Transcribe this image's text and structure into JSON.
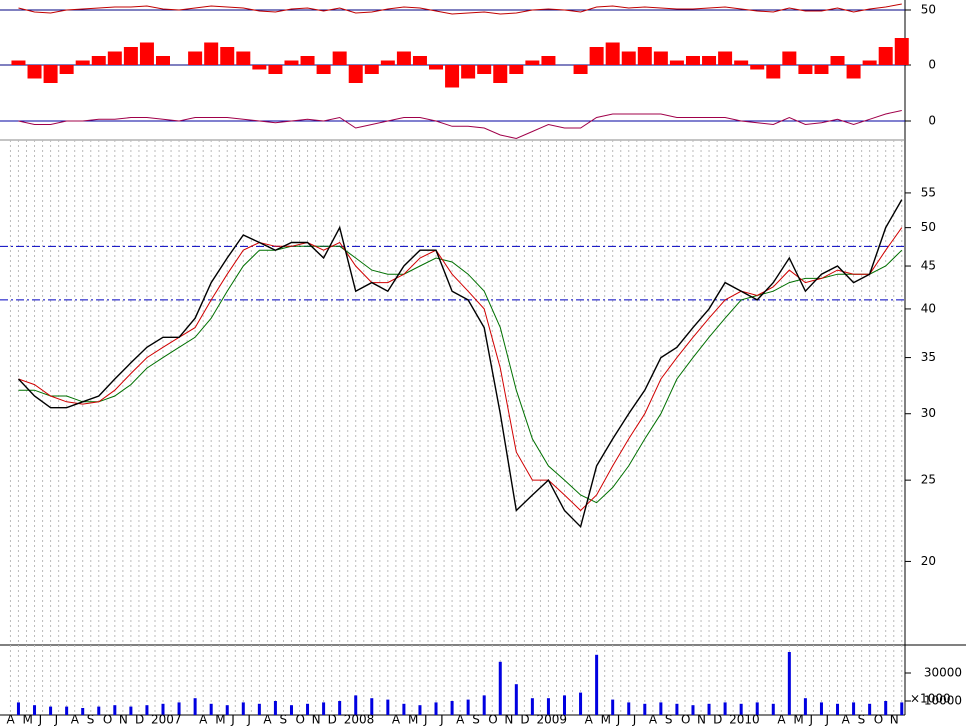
{
  "chart_data": [
    {
      "type": "line",
      "color": "#c00000",
      "values": [
        52,
        48,
        47,
        50,
        51,
        52,
        53,
        53,
        54,
        51,
        50,
        52,
        54,
        53,
        52,
        49,
        48,
        51,
        52,
        49,
        52,
        47,
        48,
        51,
        53,
        52,
        49,
        46,
        47,
        48,
        46,
        47,
        50,
        51,
        50,
        48,
        53,
        54,
        52,
        53,
        52,
        51,
        51,
        52,
        53,
        51,
        49,
        48,
        52,
        49,
        49,
        52,
        48,
        51,
        53,
        56
      ],
      "ylim": [
        40,
        60
      ],
      "yticks": [
        50
      ]
    },
    {
      "type": "bar",
      "color": "#ff0000",
      "values": [
        5,
        -15,
        -20,
        -10,
        5,
        10,
        15,
        20,
        25,
        10,
        0,
        15,
        25,
        20,
        15,
        -5,
        -10,
        5,
        10,
        -10,
        15,
        -20,
        -10,
        5,
        15,
        10,
        -5,
        -25,
        -15,
        -10,
        -20,
        -10,
        5,
        10,
        0,
        -10,
        20,
        25,
        15,
        20,
        15,
        5,
        10,
        10,
        15,
        5,
        -5,
        -15,
        15,
        -10,
        -10,
        10,
        -15,
        5,
        20,
        30
      ],
      "ylim": [
        -50,
        50
      ],
      "yticks": [
        0
      ]
    },
    {
      "type": "line",
      "color": "#a0004a",
      "values": [
        0,
        -1,
        -1,
        0,
        0,
        0.5,
        0.5,
        1,
        1,
        0.5,
        0,
        1,
        1,
        1,
        0.5,
        0,
        -0.5,
        0,
        0.5,
        0,
        1,
        -2,
        -1,
        0,
        1,
        1,
        0,
        -1.5,
        -1.5,
        -2,
        -4,
        -5,
        -3,
        -1,
        -2,
        -2,
        1,
        2,
        2,
        2,
        2,
        1,
        1,
        1,
        1,
        0,
        -0.5,
        -1,
        1,
        -1,
        -0.5,
        0.5,
        -1,
        0.5,
        2,
        3
      ],
      "ylim": [
        -6,
        6
      ],
      "yticks": [
        0
      ]
    },
    {
      "type": "line",
      "log_scale": true,
      "ylim": [
        15.9,
        63.6
      ],
      "yticks": [
        20,
        25,
        30,
        35,
        40,
        45,
        50,
        55
      ],
      "reference_lines": [
        47.5,
        41
      ],
      "reference_color": "#0000c0",
      "series": [
        {
          "color": "#000000",
          "values": [
            33,
            31.5,
            30.5,
            30.5,
            31,
            31.5,
            33,
            34.5,
            36,
            37,
            37,
            39,
            43,
            46,
            49,
            48,
            47,
            48,
            48,
            46,
            50,
            42,
            43,
            42,
            45,
            47,
            47,
            42,
            41,
            38,
            30,
            23,
            24,
            25,
            23,
            22,
            26,
            28,
            30,
            32,
            35,
            36,
            38,
            40,
            43,
            42,
            41,
            43,
            46,
            42,
            44,
            45,
            43,
            44,
            50,
            54
          ]
        },
        {
          "color": "#d00000",
          "values": [
            33,
            32.5,
            31.5,
            31,
            30.8,
            31,
            32,
            33.5,
            35,
            36,
            37,
            38,
            41,
            44,
            47,
            48,
            47.5,
            47.5,
            48,
            47,
            48,
            45,
            43,
            43,
            44,
            46,
            47,
            44,
            42,
            40,
            34,
            27,
            25,
            25,
            24,
            23,
            24,
            26,
            28,
            30,
            33,
            35,
            37,
            39,
            41,
            42,
            41.5,
            42.5,
            44.5,
            43,
            43.5,
            44.5,
            44,
            44,
            47,
            50
          ]
        },
        {
          "color": "#007000",
          "values": [
            32,
            32,
            31.5,
            31.5,
            31,
            31,
            31.5,
            32.5,
            34,
            35,
            36,
            37,
            39,
            42,
            45,
            47,
            47,
            47.5,
            47.5,
            47.5,
            47.5,
            46,
            44.5,
            44,
            44,
            45,
            46,
            45.5,
            44,
            42,
            38,
            32,
            28,
            26,
            25,
            24,
            23.5,
            24.5,
            26,
            28,
            30,
            33,
            35,
            37,
            39,
            41,
            41.5,
            42,
            43,
            43.5,
            43.5,
            44,
            44,
            44,
            45,
            47
          ]
        }
      ]
    },
    {
      "type": "bar",
      "color": "#0000e0",
      "categories": [
        "A",
        "M",
        "J",
        "J",
        "A",
        "S",
        "O",
        "N",
        "D",
        "2007",
        null,
        null,
        "A",
        "M",
        "J",
        "J",
        "A",
        "S",
        "O",
        "N",
        "D",
        "2008",
        null,
        null,
        "A",
        "M",
        "J",
        "J",
        "A",
        "S",
        "O",
        "N",
        "D",
        "2009",
        null,
        null,
        "A",
        "M",
        "J",
        "J",
        "A",
        "S",
        "O",
        "N",
        "D",
        "2010",
        null,
        null,
        "A",
        "M",
        "J",
        "J",
        "A",
        "S",
        "O",
        "N"
      ],
      "values": [
        9000,
        7000,
        6000,
        6000,
        5000,
        6000,
        7000,
        6000,
        7000,
        8000,
        9000,
        12000,
        8000,
        7000,
        9000,
        8000,
        10000,
        7000,
        8000,
        9000,
        10000,
        14000,
        12000,
        11000,
        8000,
        7000,
        9000,
        10000,
        11000,
        14000,
        38000,
        22000,
        12000,
        12000,
        14000,
        16000,
        43000,
        11000,
        9000,
        8000,
        9000,
        8000,
        7000,
        8000,
        9000,
        8000,
        9000,
        8000,
        45000,
        12000,
        9000,
        8000,
        9000,
        8000,
        10000,
        9000
      ],
      "ylim": [
        0,
        50000
      ],
      "yticks": [
        30000,
        10000
      ],
      "y_unit_label": "×1000"
    }
  ]
}
